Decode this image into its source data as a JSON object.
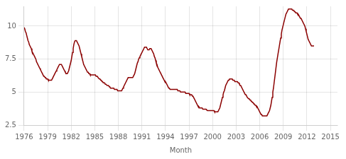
{
  "chart_data": {
    "type": "line",
    "xlabel": "Month",
    "color": "#8b0000",
    "grid": true,
    "xlim": [
      1976,
      2015.9
    ],
    "ylim": [
      2.5,
      11.5
    ],
    "xticks": [
      1976,
      1979,
      1982,
      1985,
      1988,
      1991,
      1994,
      1997,
      2000,
      2003,
      2006,
      2009,
      2012,
      2015
    ],
    "yticks": [
      2.5,
      5,
      7.5,
      10
    ],
    "x": [
      1976.0,
      1976.083,
      1976.167,
      1976.25,
      1976.333,
      1976.417,
      1976.5,
      1976.583,
      1976.667,
      1976.75,
      1976.833,
      1976.917,
      1977.0,
      1977.083,
      1977.167,
      1977.25,
      1977.333,
      1977.417,
      1977.5,
      1977.583,
      1977.667,
      1977.75,
      1977.833,
      1977.917,
      1978.0,
      1978.083,
      1978.167,
      1978.25,
      1978.333,
      1978.417,
      1978.5,
      1978.583,
      1978.667,
      1978.75,
      1978.833,
      1978.917,
      1979.0,
      1979.083,
      1979.167,
      1979.25,
      1979.333,
      1979.417,
      1979.5,
      1979.583,
      1979.667,
      1979.75,
      1979.833,
      1979.917,
      1980.0,
      1980.083,
      1980.167,
      1980.25,
      1980.333,
      1980.417,
      1980.5,
      1980.583,
      1980.667,
      1980.75,
      1980.833,
      1980.917,
      1981.0,
      1981.083,
      1981.167,
      1981.25,
      1981.333,
      1981.417,
      1981.5,
      1981.583,
      1981.667,
      1981.75,
      1981.833,
      1981.917,
      1982.0,
      1982.083,
      1982.167,
      1982.25,
      1982.333,
      1982.417,
      1982.5,
      1982.583,
      1982.667,
      1982.75,
      1982.833,
      1982.917,
      1983.0,
      1983.083,
      1983.167,
      1983.25,
      1983.333,
      1983.417,
      1983.5,
      1983.583,
      1983.667,
      1983.75,
      1983.833,
      1983.917,
      1984.0,
      1984.083,
      1984.167,
      1984.25,
      1984.333,
      1984.417,
      1984.5,
      1984.583,
      1984.667,
      1984.75,
      1984.833,
      1984.917,
      1985.0,
      1985.083,
      1985.167,
      1985.25,
      1985.333,
      1985.417,
      1985.5,
      1985.583,
      1985.667,
      1985.75,
      1985.833,
      1985.917,
      1986.0,
      1986.083,
      1986.167,
      1986.25,
      1986.333,
      1986.417,
      1986.5,
      1986.583,
      1986.667,
      1986.75,
      1986.833,
      1986.917,
      1987.0,
      1987.083,
      1987.167,
      1987.25,
      1987.333,
      1987.417,
      1987.5,
      1987.583,
      1987.667,
      1987.75,
      1987.833,
      1987.917,
      1988.0,
      1988.083,
      1988.167,
      1988.25,
      1988.333,
      1988.417,
      1988.5,
      1988.583,
      1988.667,
      1988.75,
      1988.833,
      1988.917,
      1989.0,
      1989.083,
      1989.167,
      1989.25,
      1989.333,
      1989.417,
      1989.5,
      1989.583,
      1989.667,
      1989.75,
      1989.833,
      1989.917,
      1990.0,
      1990.083,
      1990.167,
      1990.25,
      1990.333,
      1990.417,
      1990.5,
      1990.583,
      1990.667,
      1990.75,
      1990.833,
      1990.917,
      1991.0,
      1991.083,
      1991.167,
      1991.25,
      1991.333,
      1991.417,
      1991.5,
      1991.583,
      1991.667,
      1991.75,
      1991.833,
      1991.917,
      1992.0,
      1992.083,
      1992.167,
      1992.25,
      1992.333,
      1992.417,
      1992.5,
      1992.583,
      1992.667,
      1992.75,
      1992.833,
      1992.917,
      1993.0,
      1993.083,
      1993.167,
      1993.25,
      1993.333,
      1993.417,
      1993.5,
      1993.583,
      1993.667,
      1993.75,
      1993.833,
      1993.917,
      1994.0,
      1994.083,
      1994.167,
      1994.25,
      1994.333,
      1994.417,
      1994.5,
      1994.583,
      1994.667,
      1994.75,
      1994.833,
      1994.917,
      1995.0,
      1995.083,
      1995.167,
      1995.25,
      1995.333,
      1995.417,
      1995.5,
      1995.583,
      1995.667,
      1995.75,
      1995.833,
      1995.917,
      1996.0,
      1996.083,
      1996.167,
      1996.25,
      1996.333,
      1996.417,
      1996.5,
      1996.583,
      1996.667,
      1996.75,
      1996.833,
      1996.917,
      1997.0,
      1997.083,
      1997.167,
      1997.25,
      1997.333,
      1997.417,
      1997.5,
      1997.583,
      1997.667,
      1997.75,
      1997.833,
      1997.917,
      1998.0,
      1998.083,
      1998.167,
      1998.25,
      1998.333,
      1998.417,
      1998.5,
      1998.583,
      1998.667,
      1998.75,
      1998.833,
      1998.917,
      1999.0,
      1999.083,
      1999.167,
      1999.25,
      1999.333,
      1999.417,
      1999.5,
      1999.583,
      1999.667,
      1999.75,
      1999.833,
      1999.917,
      2000.0,
      2000.083,
      2000.167,
      2000.25,
      2000.333,
      2000.417,
      2000.5,
      2000.583,
      2000.667,
      2000.75,
      2000.833,
      2000.917,
      2001.0,
      2001.083,
      2001.167,
      2001.25,
      2001.333,
      2001.417,
      2001.5,
      2001.583,
      2001.667,
      2001.75,
      2001.833,
      2001.917,
      2002.0,
      2002.083,
      2002.167,
      2002.25,
      2002.333,
      2002.417,
      2002.5,
      2002.583,
      2002.667,
      2002.75,
      2002.833,
      2002.917,
      2003.0,
      2003.083,
      2003.167,
      2003.25,
      2003.333,
      2003.417,
      2003.5,
      2003.583,
      2003.667,
      2003.75,
      2003.833,
      2003.917,
      2004.0,
      2004.083,
      2004.167,
      2004.25,
      2004.333,
      2004.417,
      2004.5,
      2004.583,
      2004.667,
      2004.75,
      2004.833,
      2004.917,
      2005.0,
      2005.083,
      2005.167,
      2005.25,
      2005.333,
      2005.417,
      2005.5,
      2005.583,
      2005.667,
      2005.75,
      2005.833,
      2005.917,
      2006.0,
      2006.083,
      2006.167,
      2006.25,
      2006.333,
      2006.417,
      2006.5,
      2006.583,
      2006.667,
      2006.75,
      2006.833,
      2006.917,
      2007.0,
      2007.083,
      2007.167,
      2007.25,
      2007.333,
      2007.417,
      2007.5,
      2007.583,
      2007.667,
      2007.75,
      2007.833,
      2007.917,
      2008.0,
      2008.083,
      2008.167,
      2008.25,
      2008.333,
      2008.417,
      2008.5,
      2008.583,
      2008.667,
      2008.75,
      2008.833,
      2008.917,
      2009.0,
      2009.083,
      2009.167,
      2009.25,
      2009.333,
      2009.417,
      2009.5,
      2009.583,
      2009.667,
      2009.75,
      2009.833,
      2009.917,
      2010.0,
      2010.083,
      2010.167,
      2010.25,
      2010.333,
      2010.417,
      2010.5,
      2010.583,
      2010.667,
      2010.75,
      2010.833,
      2010.917,
      2011.0,
      2011.083,
      2011.167,
      2011.25,
      2011.333,
      2011.417,
      2011.5,
      2011.583,
      2011.667,
      2011.75,
      2011.833,
      2011.917,
      2012.0,
      2012.083,
      2012.167,
      2012.25,
      2012.333,
      2012.417,
      2012.5,
      2012.583,
      2012.667,
      2012.75,
      2012.833,
      2012.917
    ],
    "values": [
      9.9,
      9.8,
      9.6,
      9.5,
      9.3,
      9.1,
      8.9,
      8.8,
      8.6,
      8.5,
      8.4,
      8.3,
      8.1,
      8.0,
      7.9,
      7.8,
      7.7,
      7.6,
      7.5,
      7.3,
      7.2,
      7.1,
      7.0,
      6.9,
      6.8,
      6.7,
      6.6,
      6.5,
      6.4,
      6.3,
      6.2,
      6.2,
      6.1,
      6.1,
      6.0,
      6.0,
      6.0,
      5.9,
      5.9,
      5.9,
      5.9,
      5.9,
      5.9,
      6.0,
      6.1,
      6.2,
      6.3,
      6.4,
      6.5,
      6.6,
      6.7,
      6.8,
      6.9,
      7.0,
      7.1,
      7.1,
      7.1,
      7.1,
      7.0,
      6.9,
      6.8,
      6.7,
      6.6,
      6.5,
      6.4,
      6.4,
      6.4,
      6.5,
      6.6,
      6.8,
      7.0,
      7.2,
      7.4,
      7.7,
      8.0,
      8.3,
      8.6,
      8.8,
      8.9,
      8.9,
      8.9,
      8.8,
      8.7,
      8.6,
      8.5,
      8.3,
      8.1,
      7.9,
      7.7,
      7.5,
      7.3,
      7.1,
      7.0,
      6.9,
      6.8,
      6.7,
      6.6,
      6.5,
      6.5,
      6.4,
      6.4,
      6.3,
      6.3,
      6.3,
      6.3,
      6.3,
      6.3,
      6.3,
      6.3,
      6.3,
      6.2,
      6.2,
      6.2,
      6.1,
      6.1,
      6.0,
      6.0,
      5.9,
      5.9,
      5.8,
      5.8,
      5.7,
      5.7,
      5.7,
      5.6,
      5.6,
      5.6,
      5.5,
      5.5,
      5.5,
      5.4,
      5.4,
      5.3,
      5.3,
      5.3,
      5.3,
      5.3,
      5.3,
      5.2,
      5.2,
      5.2,
      5.2,
      5.2,
      5.1,
      5.1,
      5.1,
      5.1,
      5.1,
      5.1,
      5.1,
      5.2,
      5.3,
      5.4,
      5.5,
      5.6,
      5.7,
      5.8,
      5.9,
      6.0,
      6.1,
      6.1,
      6.1,
      6.1,
      6.1,
      6.1,
      6.1,
      6.1,
      6.2,
      6.3,
      6.4,
      6.6,
      6.8,
      7.0,
      7.2,
      7.3,
      7.5,
      7.6,
      7.7,
      7.8,
      7.9,
      8.0,
      8.1,
      8.2,
      8.3,
      8.4,
      8.4,
      8.4,
      8.4,
      8.3,
      8.2,
      8.2,
      8.2,
      8.3,
      8.3,
      8.3,
      8.2,
      8.1,
      8.0,
      7.9,
      7.7,
      7.6,
      7.4,
      7.2,
      7.1,
      6.9,
      6.8,
      6.7,
      6.6,
      6.5,
      6.4,
      6.3,
      6.2,
      6.1,
      6.0,
      5.9,
      5.8,
      5.8,
      5.7,
      5.6,
      5.5,
      5.4,
      5.3,
      5.3,
      5.2,
      5.2,
      5.2,
      5.2,
      5.2,
      5.2,
      5.2,
      5.2,
      5.2,
      5.2,
      5.2,
      5.2,
      5.1,
      5.1,
      5.1,
      5.1,
      5.0,
      5.0,
      5.0,
      5.0,
      5.0,
      5.0,
      5.0,
      5.0,
      4.9,
      4.9,
      4.9,
      4.9,
      4.9,
      4.9,
      4.8,
      4.8,
      4.8,
      4.8,
      4.7,
      4.7,
      4.6,
      4.5,
      4.4,
      4.3,
      4.2,
      4.1,
      4.0,
      3.9,
      3.9,
      3.8,
      3.8,
      3.8,
      3.8,
      3.8,
      3.7,
      3.7,
      3.7,
      3.7,
      3.7,
      3.7,
      3.7,
      3.6,
      3.6,
      3.6,
      3.6,
      3.6,
      3.6,
      3.6,
      3.6,
      3.6,
      3.6,
      3.6,
      3.5,
      3.5,
      3.5,
      3.5,
      3.5,
      3.5,
      3.6,
      3.7,
      3.8,
      4.0,
      4.2,
      4.4,
      4.6,
      4.8,
      5.0,
      5.1,
      5.3,
      5.5,
      5.6,
      5.7,
      5.8,
      5.9,
      5.9,
      6.0,
      6.0,
      6.0,
      6.0,
      6.0,
      5.9,
      5.9,
      5.9,
      5.8,
      5.8,
      5.8,
      5.8,
      5.8,
      5.7,
      5.7,
      5.6,
      5.5,
      5.5,
      5.4,
      5.3,
      5.2,
      5.1,
      5.0,
      4.9,
      4.8,
      4.8,
      4.7,
      4.6,
      4.6,
      4.5,
      4.5,
      4.4,
      4.4,
      4.3,
      4.3,
      4.2,
      4.2,
      4.1,
      4.1,
      4.0,
      4.0,
      3.9,
      3.9,
      3.8,
      3.7,
      3.6,
      3.5,
      3.4,
      3.3,
      3.3,
      3.2,
      3.2,
      3.2,
      3.2,
      3.2,
      3.2,
      3.2,
      3.2,
      3.3,
      3.4,
      3.5,
      3.6,
      3.8,
      4.0,
      4.3,
      4.6,
      5.0,
      5.3,
      5.7,
      6.1,
      6.5,
      6.9,
      7.3,
      7.6,
      7.9,
      8.2,
      8.5,
      8.8,
      9.1,
      9.4,
      9.7,
      9.9,
      10.1,
      10.3,
      10.5,
      10.7,
      10.9,
      11.0,
      11.1,
      11.2,
      11.3,
      11.3,
      11.3,
      11.3,
      11.3,
      11.3,
      11.2,
      11.2,
      11.2,
      11.1,
      11.1,
      11.0,
      11.0,
      11.0,
      10.9,
      10.9,
      10.8,
      10.7,
      10.6,
      10.6,
      10.5,
      10.4,
      10.3,
      10.2,
      10.1,
      10.0,
      9.8,
      9.6,
      9.4,
      9.2,
      9.0,
      8.9,
      8.8,
      8.7,
      8.6,
      8.5,
      8.5,
      8.5,
      8.5,
      8.5
    ]
  }
}
